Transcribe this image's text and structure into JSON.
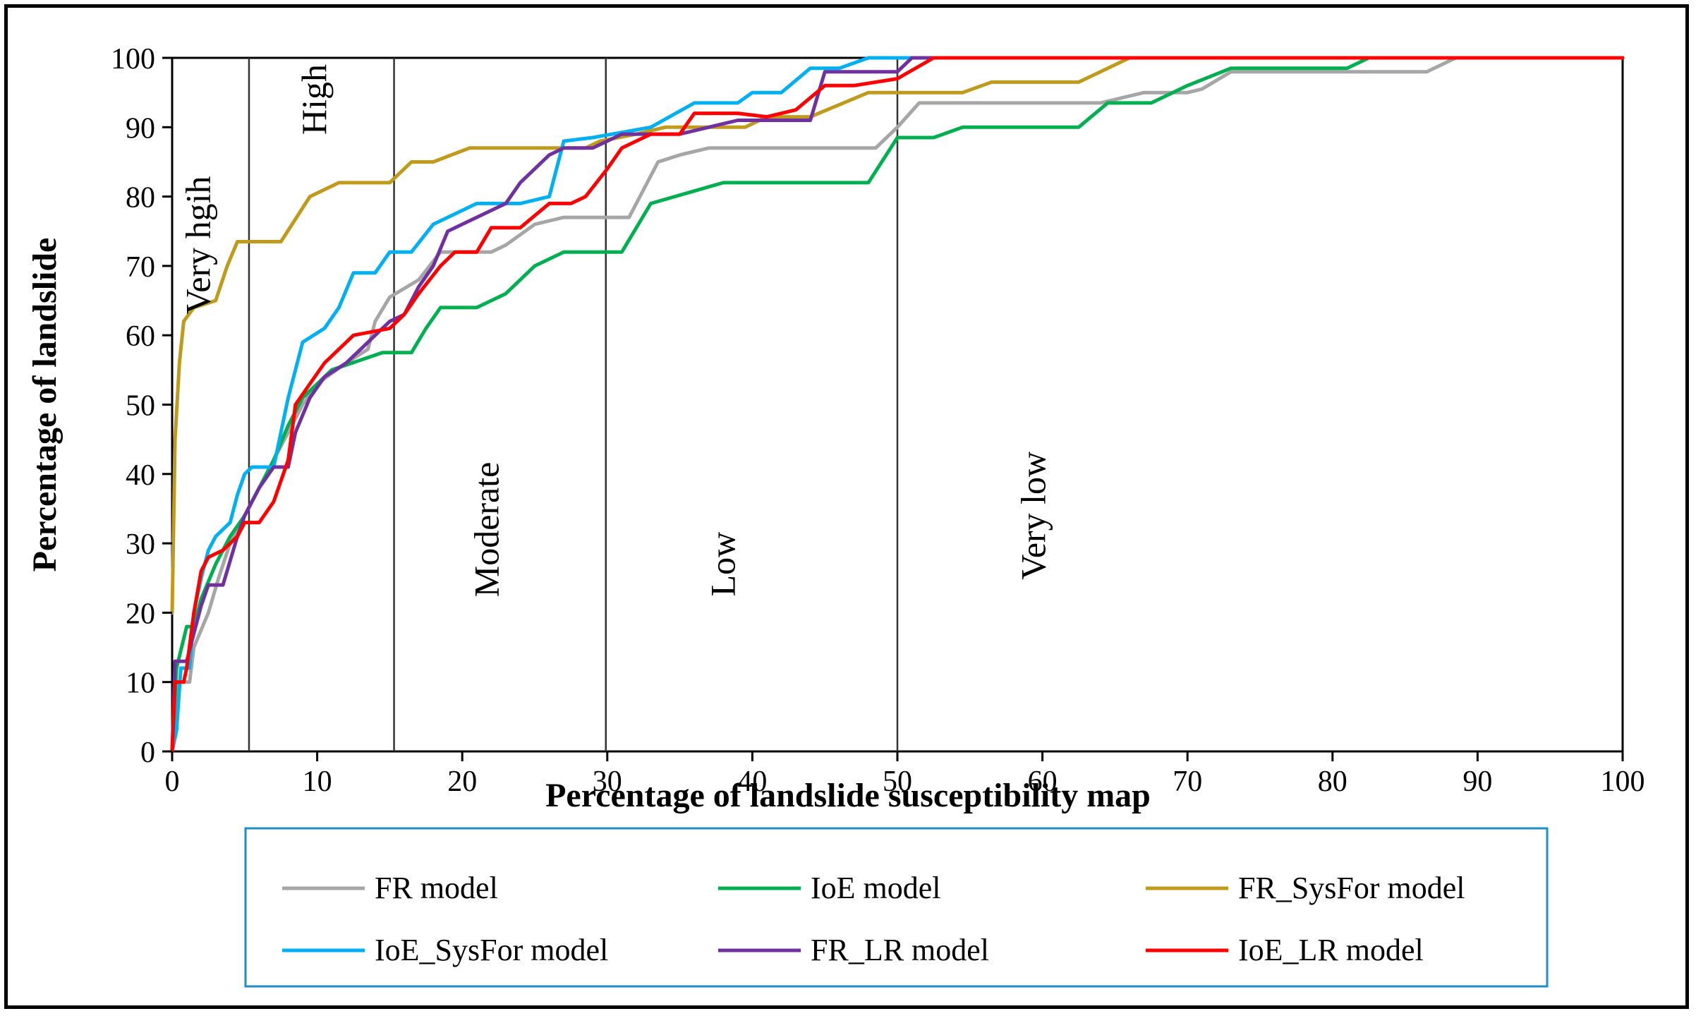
{
  "chart_data": {
    "type": "line",
    "title": "",
    "xlabel": "Percentage of landslide susceptibility map",
    "ylabel": "Percentage of landslide",
    "xlim": [
      0,
      100
    ],
    "ylim": [
      0,
      100
    ],
    "xticks": [
      0,
      10,
      20,
      30,
      40,
      50,
      60,
      70,
      80,
      90,
      100
    ],
    "yticks": [
      0,
      10,
      20,
      30,
      40,
      50,
      60,
      70,
      80,
      90,
      100
    ],
    "x_tick_labels": [
      "0",
      "10",
      "20",
      "30",
      "40",
      "50",
      "60",
      "70",
      "80",
      "90",
      "100"
    ],
    "y_tick_labels": [
      "0",
      "10",
      "20",
      "30",
      "40",
      "50",
      "60",
      "70",
      "80",
      "90",
      "100"
    ],
    "grid": false,
    "legend_position": "bottom",
    "zone_boundaries": [
      5.3,
      15.3,
      29.9,
      50.0
    ],
    "zones": [
      {
        "label": "Very hgih",
        "x": 2.6,
        "y": 73
      },
      {
        "label": "High",
        "x": 10.6,
        "y": 94
      },
      {
        "label": "Moderate",
        "x": 22.5,
        "y": 32
      },
      {
        "label": "Low",
        "x": 38.8,
        "y": 27
      },
      {
        "label": "Very low",
        "x": 60.2,
        "y": 34
      }
    ],
    "series": [
      {
        "name": "FR model",
        "color": "#a6a6a6",
        "points": [
          [
            0,
            0
          ],
          [
            0.3,
            10
          ],
          [
            1.2,
            10
          ],
          [
            1.5,
            15
          ],
          [
            2.5,
            20
          ],
          [
            3.2,
            25
          ],
          [
            4,
            30
          ],
          [
            5,
            34
          ],
          [
            6,
            38
          ],
          [
            7,
            42
          ],
          [
            8,
            46
          ],
          [
            9,
            50
          ],
          [
            10,
            53
          ],
          [
            12,
            56
          ],
          [
            13.5,
            58
          ],
          [
            14,
            62
          ],
          [
            15,
            65.5
          ],
          [
            17,
            68
          ],
          [
            18.5,
            72
          ],
          [
            22,
            72
          ],
          [
            23,
            73
          ],
          [
            25,
            76
          ],
          [
            27,
            77
          ],
          [
            31.5,
            77
          ],
          [
            33.5,
            85
          ],
          [
            35,
            86
          ],
          [
            37,
            87
          ],
          [
            48.5,
            87
          ],
          [
            50,
            90
          ],
          [
            51.5,
            93.5
          ],
          [
            54,
            93.5
          ],
          [
            64,
            93.5
          ],
          [
            67,
            95
          ],
          [
            70,
            95
          ],
          [
            71,
            95.5
          ],
          [
            73,
            98
          ],
          [
            86.5,
            98
          ],
          [
            88.5,
            100
          ],
          [
            100,
            100
          ]
        ]
      },
      {
        "name": "IoE model",
        "color": "#00b050",
        "points": [
          [
            0,
            0
          ],
          [
            0.3,
            12
          ],
          [
            1,
            18
          ],
          [
            1.5,
            18
          ],
          [
            2,
            22
          ],
          [
            3,
            27
          ],
          [
            4,
            31
          ],
          [
            5,
            34
          ],
          [
            6,
            38
          ],
          [
            7,
            42
          ],
          [
            8,
            47
          ],
          [
            9,
            51
          ],
          [
            10,
            53
          ],
          [
            11,
            55
          ],
          [
            14.5,
            57.5
          ],
          [
            16.5,
            57.5
          ],
          [
            17.5,
            61
          ],
          [
            18.5,
            64
          ],
          [
            21,
            64
          ],
          [
            23,
            66
          ],
          [
            25,
            70
          ],
          [
            27,
            72
          ],
          [
            29,
            72
          ],
          [
            31,
            72
          ],
          [
            33,
            79
          ],
          [
            38,
            82
          ],
          [
            48,
            82
          ],
          [
            50,
            88.5
          ],
          [
            52.5,
            88.5
          ],
          [
            54.5,
            90
          ],
          [
            62.5,
            90
          ],
          [
            64.5,
            93.5
          ],
          [
            67.5,
            93.5
          ],
          [
            70,
            96
          ],
          [
            73,
            98.5
          ],
          [
            81,
            98.5
          ],
          [
            82.5,
            100
          ],
          [
            100,
            100
          ]
        ]
      },
      {
        "name": "FR_SysFor model",
        "color": "#c09a1a",
        "points": [
          [
            0,
            20
          ],
          [
            0.2,
            45
          ],
          [
            0.5,
            56
          ],
          [
            0.8,
            62
          ],
          [
            1.5,
            64
          ],
          [
            3,
            65
          ],
          [
            3.8,
            70
          ],
          [
            4.5,
            73.5
          ],
          [
            7.5,
            73.5
          ],
          [
            9.5,
            80
          ],
          [
            11.5,
            82
          ],
          [
            15,
            82
          ],
          [
            16.5,
            85
          ],
          [
            18,
            85
          ],
          [
            20.5,
            87
          ],
          [
            28.5,
            87
          ],
          [
            29.5,
            88
          ],
          [
            32,
            89
          ],
          [
            34,
            90
          ],
          [
            39.5,
            90
          ],
          [
            41,
            91.5
          ],
          [
            44,
            91.5
          ],
          [
            48,
            95
          ],
          [
            51,
            95
          ],
          [
            54.5,
            95
          ],
          [
            56.5,
            96.5
          ],
          [
            62.5,
            96.5
          ],
          [
            64,
            98
          ],
          [
            66,
            100
          ],
          [
            100,
            100
          ]
        ]
      },
      {
        "name": "IoE_SysFor model",
        "color": "#00b0f0",
        "points": [
          [
            0,
            0
          ],
          [
            0.3,
            3
          ],
          [
            0.6,
            12
          ],
          [
            1.2,
            12
          ],
          [
            1.5,
            20
          ],
          [
            2,
            25
          ],
          [
            2.5,
            29
          ],
          [
            3,
            31
          ],
          [
            4,
            33
          ],
          [
            4.5,
            37
          ],
          [
            5,
            40
          ],
          [
            5.5,
            41
          ],
          [
            7,
            41
          ],
          [
            7.5,
            46
          ],
          [
            8,
            51
          ],
          [
            9,
            59
          ],
          [
            10.5,
            61
          ],
          [
            11.5,
            64
          ],
          [
            12.5,
            69
          ],
          [
            14,
            69
          ],
          [
            15,
            72
          ],
          [
            16.5,
            72
          ],
          [
            18,
            76
          ],
          [
            19,
            77
          ],
          [
            21,
            79
          ],
          [
            24,
            79
          ],
          [
            26,
            80
          ],
          [
            27,
            88
          ],
          [
            29,
            88.5
          ],
          [
            33,
            90
          ],
          [
            36,
            93.5
          ],
          [
            39,
            93.5
          ],
          [
            40,
            95
          ],
          [
            42,
            95
          ],
          [
            44,
            98.5
          ],
          [
            46,
            98.5
          ],
          [
            48,
            100
          ],
          [
            100,
            100
          ]
        ]
      },
      {
        "name": "FR_LR model",
        "color": "#7030a0",
        "points": [
          [
            0,
            0
          ],
          [
            0.2,
            13
          ],
          [
            1,
            13
          ],
          [
            1.5,
            17
          ],
          [
            2,
            21
          ],
          [
            2.5,
            24
          ],
          [
            3.5,
            24
          ],
          [
            4.5,
            31
          ],
          [
            5,
            34
          ],
          [
            6,
            38
          ],
          [
            7,
            41
          ],
          [
            8,
            41
          ],
          [
            8.5,
            46
          ],
          [
            9.5,
            51
          ],
          [
            10.5,
            54
          ],
          [
            12,
            56
          ],
          [
            13,
            58
          ],
          [
            14,
            60
          ],
          [
            15,
            62
          ],
          [
            16,
            63
          ],
          [
            17,
            67
          ],
          [
            18,
            70
          ],
          [
            19,
            75
          ],
          [
            20,
            76
          ],
          [
            22,
            78
          ],
          [
            23,
            79
          ],
          [
            24,
            82
          ],
          [
            25,
            84
          ],
          [
            26,
            86
          ],
          [
            27,
            87
          ],
          [
            29,
            87
          ],
          [
            31,
            89
          ],
          [
            35,
            89
          ],
          [
            37,
            90
          ],
          [
            39,
            91
          ],
          [
            44,
            91
          ],
          [
            45,
            98
          ],
          [
            48,
            98
          ],
          [
            50,
            98
          ],
          [
            51,
            100
          ],
          [
            100,
            100
          ]
        ]
      },
      {
        "name": "IoE_LR model",
        "color": "#ff0000",
        "points": [
          [
            0,
            0
          ],
          [
            0.2,
            10
          ],
          [
            0.8,
            10
          ],
          [
            1,
            12
          ],
          [
            1.5,
            20
          ],
          [
            2,
            26
          ],
          [
            2.5,
            28
          ],
          [
            3.5,
            29
          ],
          [
            4.5,
            31
          ],
          [
            5,
            33
          ],
          [
            6,
            33
          ],
          [
            7,
            36
          ],
          [
            8,
            42
          ],
          [
            8.5,
            50
          ],
          [
            9.5,
            53
          ],
          [
            10.5,
            56
          ],
          [
            11.5,
            58
          ],
          [
            12.5,
            60
          ],
          [
            15,
            61
          ],
          [
            16,
            63
          ],
          [
            17,
            66
          ],
          [
            18.5,
            70
          ],
          [
            19.5,
            72
          ],
          [
            21,
            72
          ],
          [
            22,
            75.5
          ],
          [
            24,
            75.5
          ],
          [
            26,
            79
          ],
          [
            27.5,
            79
          ],
          [
            28.5,
            80
          ],
          [
            30,
            84
          ],
          [
            31,
            87
          ],
          [
            33,
            89
          ],
          [
            35,
            89
          ],
          [
            36,
            92
          ],
          [
            39,
            92
          ],
          [
            41,
            91.5
          ],
          [
            43,
            92.5
          ],
          [
            45,
            96
          ],
          [
            47,
            96
          ],
          [
            50,
            97
          ],
          [
            52.5,
            100
          ],
          [
            100,
            100
          ]
        ]
      }
    ]
  }
}
